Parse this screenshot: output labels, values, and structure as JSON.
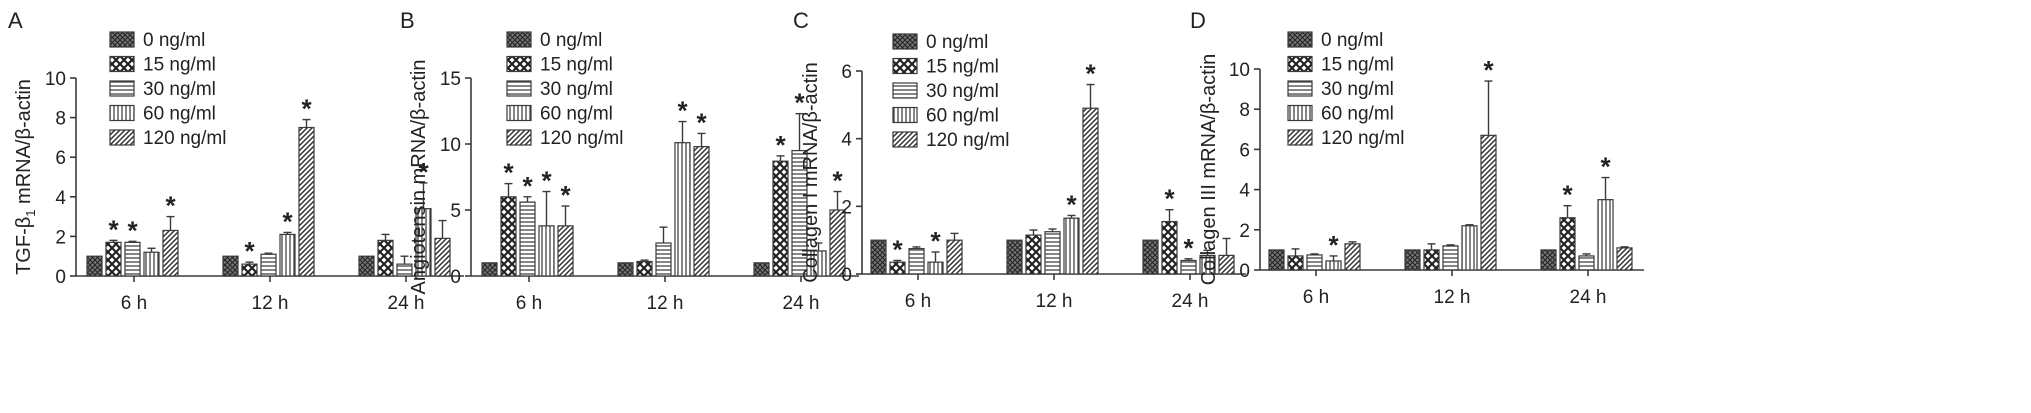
{
  "colors": {
    "stroke": "#3a3a3a",
    "fill": "#ffffff",
    "dark": "#555555"
  },
  "chart_data": [
    {
      "type": "bar",
      "panel_label": "A",
      "ylabel": "TGF-β1 mRNA/β-actin",
      "ylabel_main": "TGF-β",
      "ylabel_sub": "1",
      "ylabel_rest": " mRNA/β-actin",
      "categories": [
        "6 h",
        "12 h",
        "24 h"
      ],
      "ylim": [
        0,
        10
      ],
      "yticks": [
        "0",
        "2",
        "4",
        "6",
        "8",
        "10"
      ],
      "legend": [
        "0 ng/ml",
        "15 ng/ml",
        "30 ng/ml",
        "60 ng/ml",
        "120 ng/ml"
      ],
      "series": [
        {
          "name": "0 ng/ml",
          "values": [
            1.0,
            1.0,
            1.0
          ],
          "errors": [
            0,
            0,
            0
          ],
          "sig": [
            false,
            false,
            false
          ]
        },
        {
          "name": "15 ng/ml",
          "values": [
            1.7,
            0.6,
            1.8
          ],
          "errors": [
            0.1,
            0.1,
            0.3
          ],
          "sig": [
            true,
            true,
            false
          ]
        },
        {
          "name": "30 ng/ml",
          "values": [
            1.7,
            1.1,
            0.6
          ],
          "errors": [
            0.05,
            0.05,
            0.4
          ],
          "sig": [
            true,
            false,
            false
          ]
        },
        {
          "name": "60 ng/ml",
          "values": [
            1.2,
            2.1,
            3.4
          ],
          "errors": [
            0.2,
            0.1,
            1.3
          ],
          "sig": [
            false,
            true,
            true
          ]
        },
        {
          "name": "120 ng/ml",
          "values": [
            2.3,
            7.5,
            1.9
          ],
          "errors": [
            0.7,
            0.4,
            0.9
          ],
          "sig": [
            true,
            true,
            false
          ]
        }
      ]
    },
    {
      "type": "bar",
      "panel_label": "B",
      "ylabel": "Angiotensin mRNA/β-actin",
      "categories": [
        "6 h",
        "12 h",
        "24 h"
      ],
      "ylim": [
        0,
        15
      ],
      "yticks": [
        "0",
        "5",
        "10",
        "15"
      ],
      "legend": [
        "0 ng/ml",
        "15 ng/ml",
        "30 ng/ml",
        "60 ng/ml",
        "120 ng/ml"
      ],
      "series": [
        {
          "name": "0 ng/ml",
          "values": [
            1.0,
            1.0,
            1.0
          ],
          "errors": [
            0,
            0,
            0
          ],
          "sig": [
            false,
            false,
            false
          ]
        },
        {
          "name": "15 ng/ml",
          "values": [
            6.0,
            1.1,
            8.7
          ],
          "errors": [
            1.0,
            0.1,
            0.4
          ],
          "sig": [
            true,
            false,
            true
          ]
        },
        {
          "name": "30 ng/ml",
          "values": [
            5.6,
            2.5,
            9.5
          ],
          "errors": [
            0.4,
            1.2,
            2.8
          ],
          "sig": [
            true,
            false,
            true
          ]
        },
        {
          "name": "60 ng/ml",
          "values": [
            3.8,
            10.1,
            1.9
          ],
          "errors": [
            2.6,
            1.6,
            0.6
          ],
          "sig": [
            true,
            true,
            false
          ]
        },
        {
          "name": "120 ng/ml",
          "values": [
            3.8,
            9.8,
            5.0
          ],
          "errors": [
            1.5,
            1.0,
            1.4
          ],
          "sig": [
            true,
            true,
            true
          ]
        }
      ]
    },
    {
      "type": "bar",
      "panel_label": "C",
      "ylabel": "Collagen I mRNA/β-actin",
      "categories": [
        "6 h",
        "12 h",
        "24 h"
      ],
      "ylim": [
        0,
        6
      ],
      "yticks": [
        "0",
        "2",
        "4",
        "6"
      ],
      "legend": [
        "0 ng/ml",
        "15 ng/ml",
        "30 ng/ml",
        "60 ng/ml",
        "120 ng/ml"
      ],
      "series": [
        {
          "name": "0 ng/ml",
          "values": [
            1.0,
            1.0,
            1.0
          ],
          "errors": [
            0,
            0,
            0
          ],
          "sig": [
            false,
            false,
            false
          ]
        },
        {
          "name": "15 ng/ml",
          "values": [
            0.35,
            1.15,
            1.55
          ],
          "errors": [
            0.05,
            0.15,
            0.35
          ],
          "sig": [
            true,
            false,
            true
          ]
        },
        {
          "name": "30 ng/ml",
          "values": [
            0.75,
            1.25,
            0.4
          ],
          "errors": [
            0.05,
            0.08,
            0.05
          ],
          "sig": [
            false,
            false,
            true
          ]
        },
        {
          "name": "60 ng/ml",
          "values": [
            0.35,
            1.65,
            0.55
          ],
          "errors": [
            0.3,
            0.08,
            0.15
          ],
          "sig": [
            true,
            true,
            false
          ]
        },
        {
          "name": "120 ng/ml",
          "values": [
            1.0,
            4.9,
            0.55
          ],
          "errors": [
            0.2,
            0.7,
            0.5
          ],
          "sig": [
            false,
            true,
            false
          ]
        }
      ]
    },
    {
      "type": "bar",
      "panel_label": "D",
      "ylabel": "Collagen III mRNA/β-actin",
      "categories": [
        "6 h",
        "12 h",
        "24 h"
      ],
      "ylim": [
        0,
        10
      ],
      "yticks": [
        "0",
        "2",
        "4",
        "6",
        "8",
        "10"
      ],
      "legend": [
        "0 ng/ml",
        "15 ng/ml",
        "30 ng/ml",
        "60 ng/ml",
        "120 ng/ml"
      ],
      "series": [
        {
          "name": "0 ng/ml",
          "values": [
            1.0,
            1.0,
            1.0
          ],
          "errors": [
            0,
            0,
            0
          ],
          "sig": [
            false,
            false,
            false
          ]
        },
        {
          "name": "15 ng/ml",
          "values": [
            0.7,
            1.0,
            2.6
          ],
          "errors": [
            0.35,
            0.3,
            0.6
          ],
          "sig": [
            false,
            false,
            true
          ]
        },
        {
          "name": "30 ng/ml",
          "values": [
            0.75,
            1.2,
            0.7
          ],
          "errors": [
            0.05,
            0.05,
            0.1
          ],
          "sig": [
            false,
            false,
            false
          ]
        },
        {
          "name": "60 ng/ml",
          "values": [
            0.45,
            2.2,
            3.5
          ],
          "errors": [
            0.25,
            0.05,
            1.1
          ],
          "sig": [
            true,
            false,
            true
          ]
        },
        {
          "name": "120 ng/ml",
          "values": [
            1.3,
            6.7,
            1.1
          ],
          "errors": [
            0.1,
            2.7,
            0.05
          ],
          "sig": [
            false,
            true,
            false
          ]
        }
      ]
    }
  ]
}
